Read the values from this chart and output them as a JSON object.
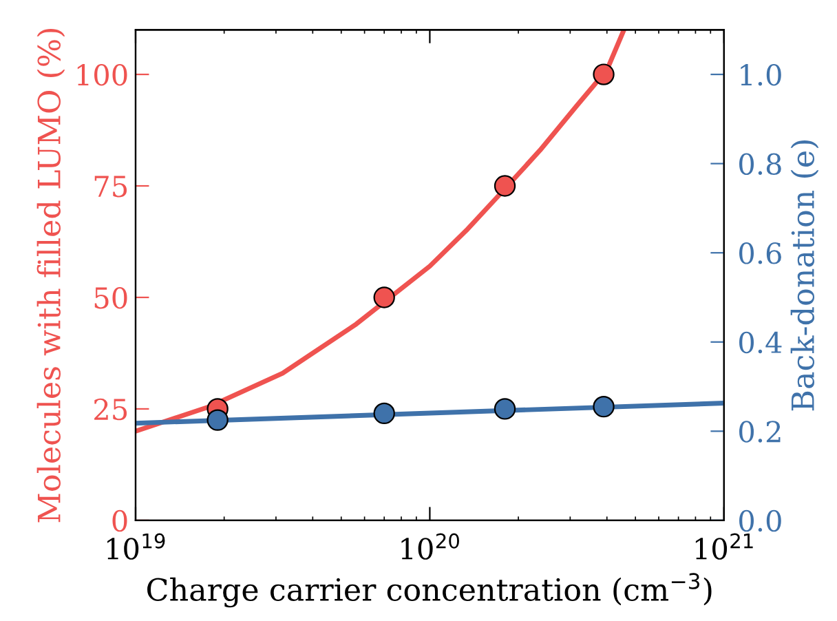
{
  "chart_data": {
    "type": "scatter",
    "xlabel": "Charge carrier concentration (cm$^{−3}$)",
    "ylabel": "Molecules with filled LUMO (%)",
    "y2label": "Back-donation (e)",
    "log": "x",
    "grid": false,
    "legend": false,
    "marker": "circle",
    "xlim": [
      1e+19,
      1e+21
    ],
    "xticks": [
      {
        "value": 1e+19,
        "label": "10$^{19}$"
      },
      {
        "value": 1e+20,
        "label": "10$^{20}$"
      },
      {
        "value": 1e+21,
        "label": "10$^{21}$"
      }
    ],
    "ylim": [
      0,
      110
    ],
    "yticks": [
      0,
      25,
      50,
      75,
      100
    ],
    "y2lim": [
      0,
      1.1
    ],
    "y2ticks": [
      {
        "value": 0,
        "label": "0.0"
      },
      {
        "value": 0.2,
        "label": "0.2"
      },
      {
        "value": 0.4,
        "label": "0.4"
      },
      {
        "value": 0.6,
        "label": "0.6"
      },
      {
        "value": 0.8,
        "label": "0.8"
      },
      {
        "value": 1.0,
        "label": "1.0"
      }
    ],
    "series": [
      {
        "type": "line",
        "color": "#ef5350",
        "marker": "none",
        "x": [
          1e+19,
          1.78e+19,
          3.16e+19,
          5.62e+19,
          1e+20,
          1.33e+20,
          1.78e+20,
          2.37e+20,
          3.16e+20,
          4e+20,
          4.57e+20
        ],
        "values": [
          20,
          25.5,
          33,
          44,
          57,
          65,
          74,
          83,
          93,
          101,
          110
        ]
      },
      {
        "type": "line",
        "axis": "y2",
        "color": "#3f72aa",
        "marker": "none",
        "x": [
          1e+19,
          1e+21
        ],
        "values": [
          0.218,
          0.263
        ]
      },
      {
        "color": "#ef5350",
        "x": [
          1.9e+19,
          7e+19,
          1.8e+20,
          3.9e+20
        ],
        "values": [
          25,
          50,
          75,
          100
        ]
      },
      {
        "axis": "y2",
        "color": "#3f72aa",
        "x": [
          1.9e+19,
          7e+19,
          1.8e+20,
          3.9e+20
        ],
        "values": [
          0.225,
          0.24,
          0.25,
          0.255
        ]
      }
    ]
  }
}
